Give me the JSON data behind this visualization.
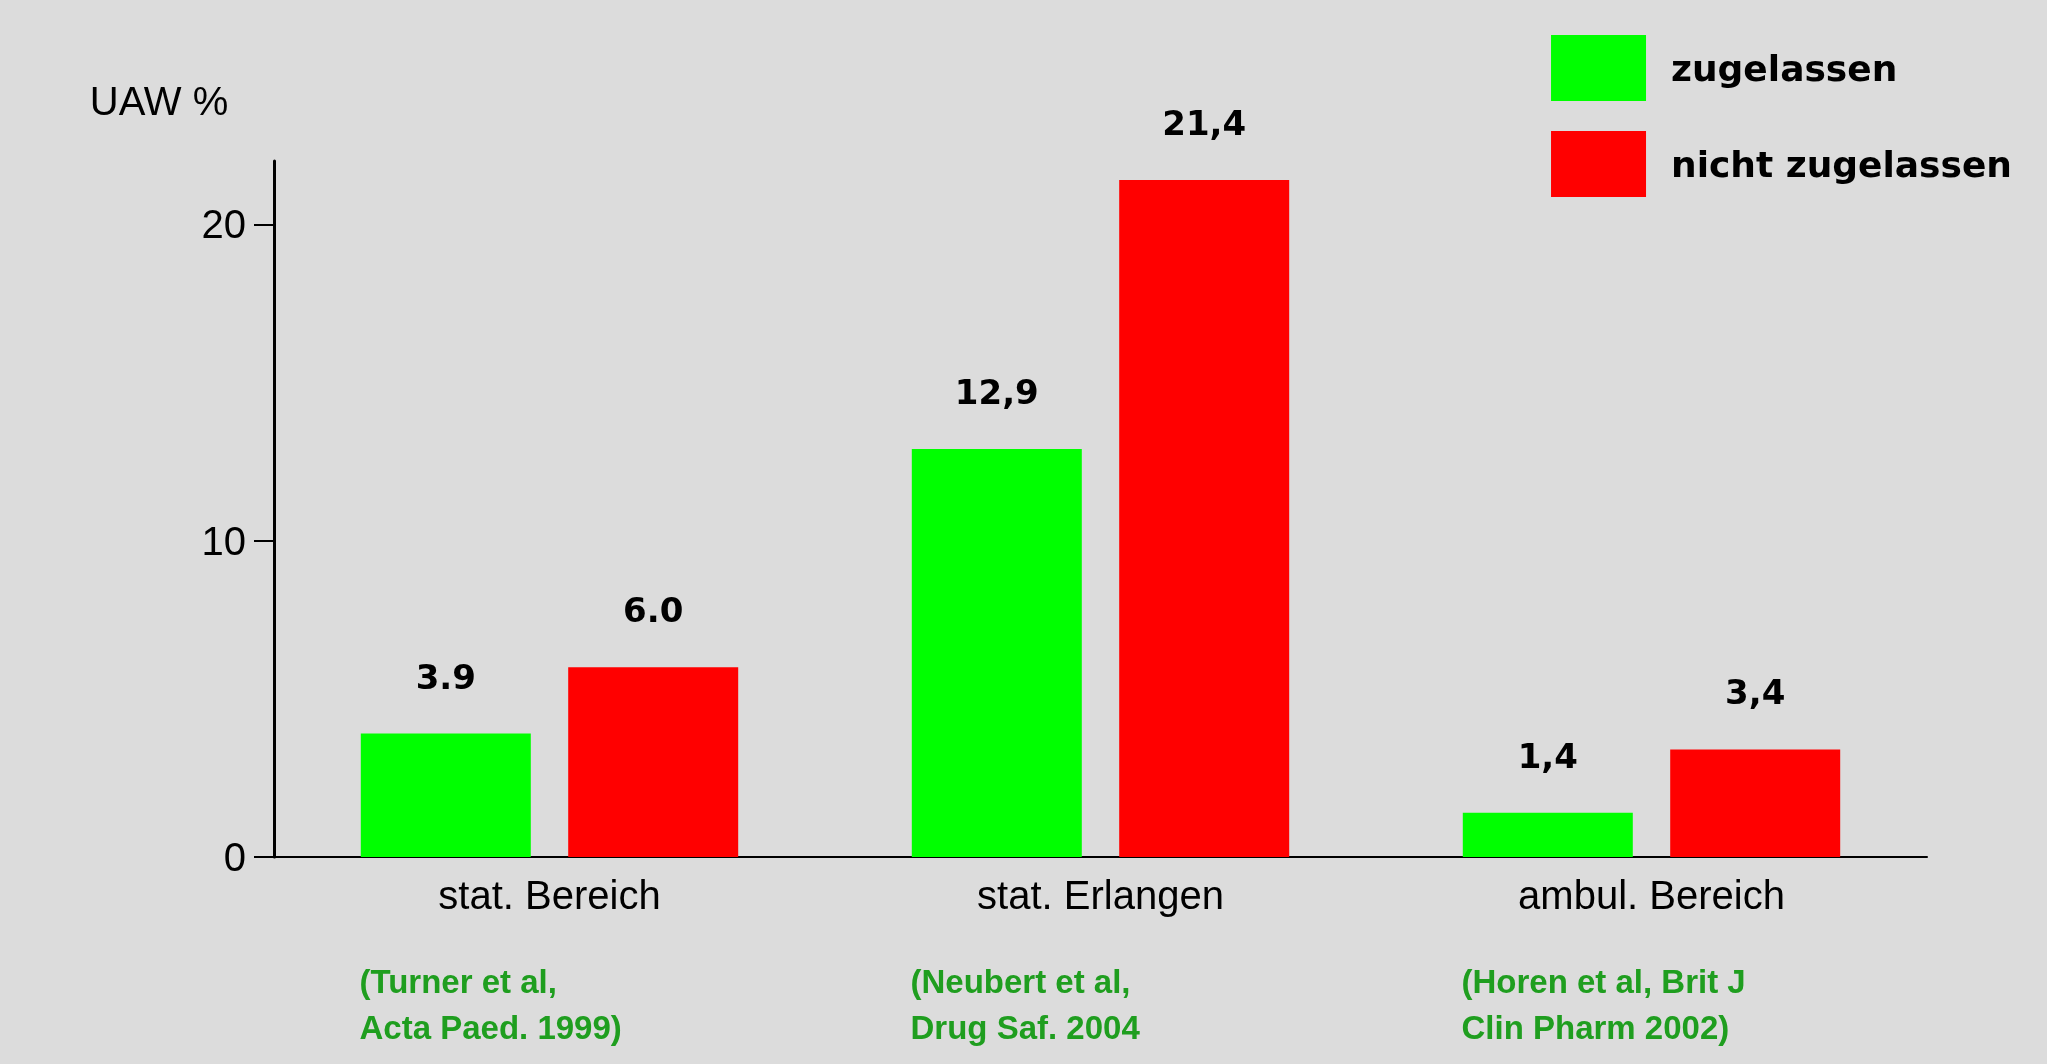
{
  "chart_data": {
    "type": "bar",
    "ylabel": "UAW %",
    "categories": [
      "stat. Bereich",
      "stat. Erlangen",
      "ambul. Bereich"
    ],
    "series": [
      {
        "name": "zugelassen",
        "color": "#00ff00",
        "values": [
          3.9,
          12.9,
          1.4
        ],
        "value_labels": [
          "3.9",
          "12,9",
          "1,4"
        ]
      },
      {
        "name": "nicht zugelassen",
        "color": "#ff0000",
        "values": [
          6.0,
          21.4,
          3.4
        ],
        "value_labels": [
          "6.0",
          "21,4",
          "3,4"
        ]
      }
    ],
    "ylim": [
      0,
      22
    ],
    "yticks": [
      0,
      10,
      20
    ],
    "grid": false,
    "legend": "top right",
    "annotations": [
      "(Turner et al,\nActa Paed. 1999)",
      "(Neubert et al,\nDrug Saf. 2004",
      "(Horen et al, Brit J\nClin Pharm 2002)"
    ]
  }
}
